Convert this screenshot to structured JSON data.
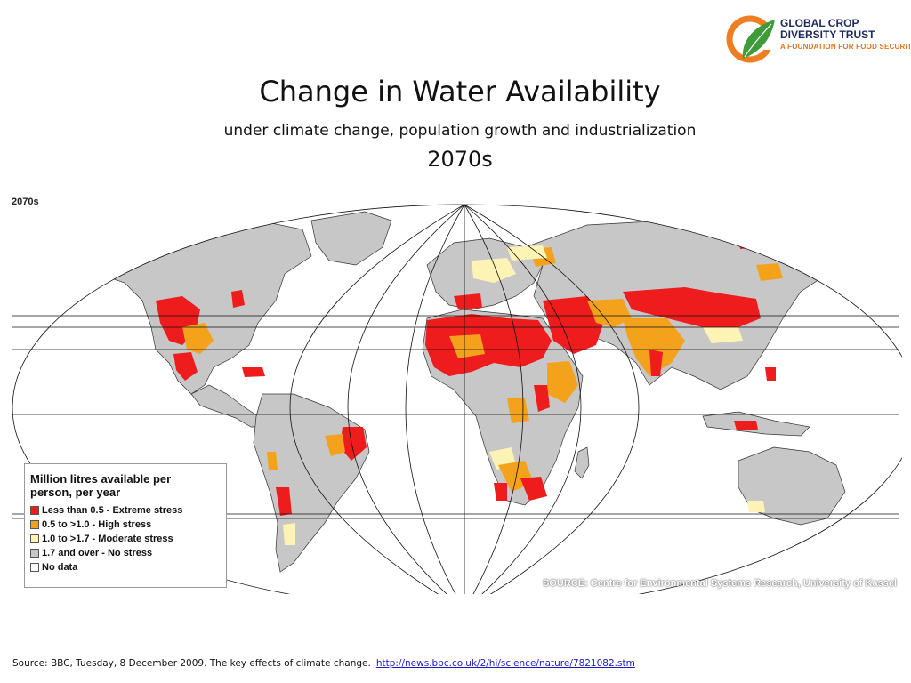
{
  "logo": {
    "line1": "GLOBAL CROP",
    "line2": "DIVERSITY TRUST",
    "line3": "A FOUNDATION FOR FOOD SECURITY",
    "colors": {
      "ring": "#ef7d22",
      "leaf": "#3f9b3a",
      "text": "#1f2a5c",
      "tagline": "#e2731f"
    }
  },
  "title": "Change in Water Availability",
  "subtitle": "under climate change, population growth and industrialization",
  "period": "2070s",
  "map": {
    "period_label": "2070s",
    "source": "SOURCE: Centre for Environmental Systems Research, University of Kassel",
    "colors": {
      "extreme": "#ee1c1c",
      "high": "#f4a21c",
      "moderate": "#fdf3b4",
      "none": "#c7c7c7",
      "nodata": "#ffffff"
    }
  },
  "legend": {
    "title_line1": "Million litres available per",
    "title_line2": "person, per year",
    "items": [
      {
        "label": "Less than 0.5 - Extreme stress",
        "color": "#ee1c1c"
      },
      {
        "label": "0.5 to >1.0 - High stress",
        "color": "#f4a21c"
      },
      {
        "label": "1.0 to >1.7 - Moderate stress",
        "color": "#fdf3b4"
      },
      {
        "label": "1.7 and over - No stress",
        "color": "#c7c7c7"
      },
      {
        "label": "No data",
        "color": "#ffffff"
      }
    ]
  },
  "footer": {
    "text": "Source:  BBC, Tuesday, 8 December 2009. The key effects of climate change.",
    "link": "http://news.bbc.co.uk/2/hi/science/nature/7821082.stm"
  }
}
